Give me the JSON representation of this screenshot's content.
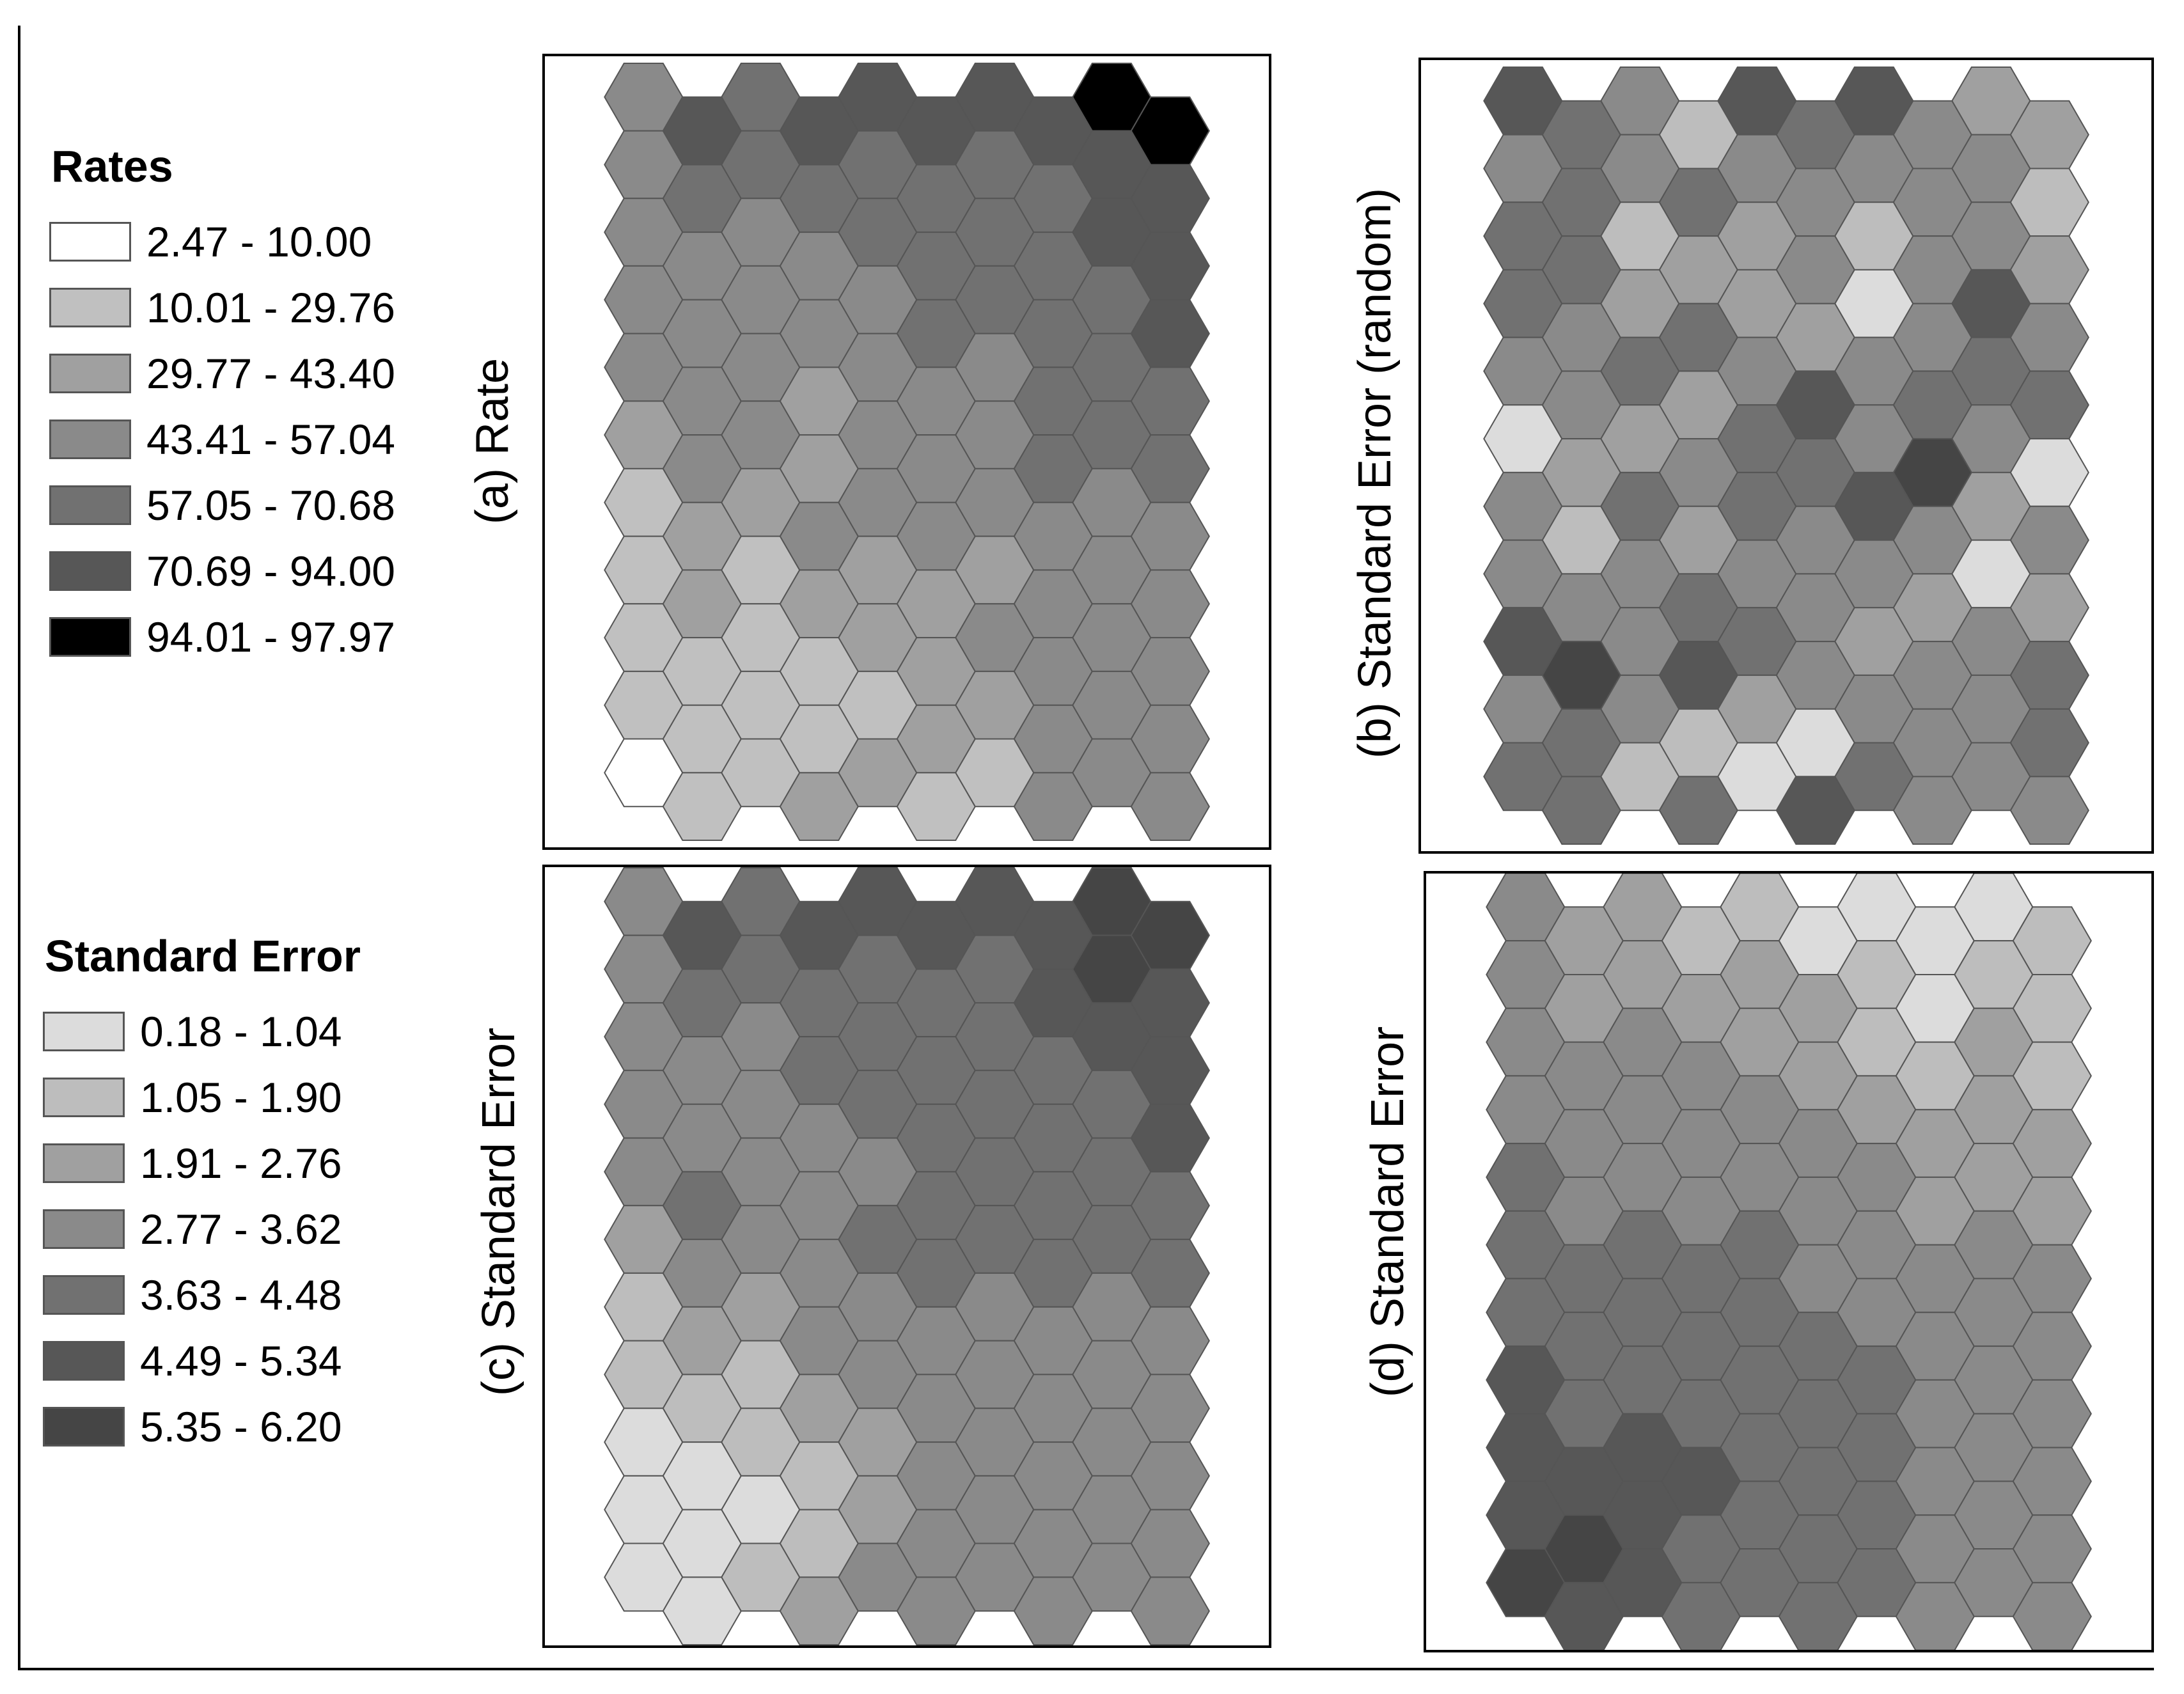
{
  "colors": {
    "classes": [
      "#ffffff",
      "#c0c0c0",
      "#a0a0a0",
      "#8a8a8a",
      "#717171",
      "#575757",
      "#000000"
    ],
    "se_classes": [
      "#dcdcdc",
      "#bdbdbd",
      "#a0a0a0",
      "#8a8a8a",
      "#717171",
      "#575757",
      "#454545"
    ],
    "hex_stroke": "#555555"
  },
  "legends": {
    "rates": {
      "title": "Rates",
      "items": [
        "2.47 - 10.00",
        "10.01 - 29.76",
        "29.77 - 43.40",
        "43.41 - 57.04",
        "57.05 - 70.68",
        "70.69 - 94.00",
        "94.01 - 97.97"
      ]
    },
    "standard_error": {
      "title": "Standard Error",
      "items": [
        "0.18 - 1.04",
        "1.05 - 1.90",
        "1.91 - 2.76",
        "2.77 - 3.62",
        "3.63 - 4.48",
        "4.49 - 5.34",
        "5.35 - 6.20"
      ]
    }
  },
  "chart_data": [
    {
      "type": "heatmap",
      "layout": "hexagonal grid, 10 columns x 11 rows, flat-topped hexagons, odd columns offset downward",
      "title": "(a) Rate",
      "legend": "Rates",
      "classes": [
        [
          3,
          3,
          3,
          3,
          3,
          2,
          1,
          1,
          1,
          1,
          0
        ],
        [
          5,
          4,
          3,
          3,
          3,
          3,
          2,
          2,
          1,
          1,
          1
        ],
        [
          4,
          4,
          3,
          3,
          3,
          3,
          2,
          1,
          1,
          1,
          1
        ],
        [
          5,
          4,
          3,
          3,
          2,
          2,
          3,
          2,
          1,
          1,
          2
        ],
        [
          5,
          4,
          4,
          3,
          3,
          3,
          3,
          2,
          2,
          1,
          2
        ],
        [
          5,
          4,
          4,
          4,
          3,
          3,
          3,
          2,
          2,
          2,
          1
        ],
        [
          5,
          4,
          4,
          4,
          3,
          3,
          3,
          2,
          3,
          2,
          1
        ],
        [
          5,
          4,
          4,
          4,
          4,
          4,
          3,
          3,
          3,
          3,
          3
        ],
        [
          6,
          5,
          5,
          4,
          4,
          4,
          3,
          3,
          3,
          3,
          3
        ],
        [
          6,
          5,
          5,
          5,
          4,
          4,
          3,
          3,
          3,
          3,
          3
        ]
      ]
    },
    {
      "type": "heatmap",
      "layout": "hexagonal grid, 10 columns x 11 rows, flat-topped hexagons, odd columns offset downward",
      "title": "(b) Standard Error (random)",
      "legend": "Standard Error",
      "classes": [
        [
          5,
          3,
          4,
          4,
          3,
          0,
          3,
          3,
          5,
          3,
          4
        ],
        [
          4,
          4,
          4,
          3,
          3,
          2,
          1,
          3,
          6,
          4,
          4
        ],
        [
          3,
          3,
          1,
          2,
          4,
          2,
          4,
          3,
          3,
          3,
          1
        ],
        [
          1,
          4,
          2,
          4,
          2,
          3,
          2,
          4,
          5,
          1,
          4
        ],
        [
          5,
          3,
          2,
          2,
          3,
          4,
          4,
          3,
          4,
          2,
          0
        ],
        [
          4,
          3,
          3,
          2,
          5,
          4,
          3,
          3,
          3,
          0,
          5
        ],
        [
          5,
          3,
          1,
          0,
          3,
          3,
          5,
          3,
          2,
          3,
          4
        ],
        [
          3,
          3,
          3,
          3,
          4,
          6,
          3,
          2,
          3,
          3,
          3
        ],
        [
          2,
          3,
          3,
          5,
          4,
          3,
          2,
          0,
          3,
          3,
          3
        ],
        [
          2,
          1,
          2,
          3,
          4,
          0,
          3,
          2,
          4,
          4,
          3
        ]
      ]
    },
    {
      "type": "heatmap",
      "layout": "hexagonal grid, 10 columns x 11 rows, flat-topped hexagons, odd columns offset downward",
      "title": "(c) Standard Error",
      "legend": "Standard Error",
      "classes": [
        [
          3,
          3,
          3,
          3,
          3,
          2,
          1,
          1,
          0,
          0,
          0
        ],
        [
          5,
          4,
          3,
          3,
          4,
          3,
          2,
          1,
          0,
          0,
          0
        ],
        [
          4,
          4,
          3,
          3,
          3,
          3,
          2,
          1,
          1,
          0,
          1
        ],
        [
          5,
          4,
          4,
          3,
          3,
          3,
          3,
          2,
          1,
          1,
          2
        ],
        [
          5,
          4,
          4,
          4,
          3,
          4,
          3,
          3,
          2,
          2,
          3
        ],
        [
          5,
          4,
          4,
          4,
          4,
          4,
          3,
          3,
          3,
          3,
          3
        ],
        [
          5,
          4,
          4,
          4,
          4,
          4,
          3,
          3,
          3,
          3,
          3
        ],
        [
          5,
          5,
          4,
          4,
          4,
          4,
          3,
          3,
          3,
          3,
          3
        ],
        [
          6,
          6,
          5,
          4,
          4,
          4,
          3,
          3,
          3,
          3,
          3
        ],
        [
          6,
          5,
          5,
          5,
          4,
          4,
          3,
          3,
          3,
          3,
          3
        ]
      ]
    },
    {
      "type": "heatmap",
      "layout": "hexagonal grid, 10 columns x 11 rows, flat-topped hexagons, odd columns offset downward",
      "title": "(d) Standard Error",
      "legend": "Standard Error",
      "classes": [
        [
          3,
          3,
          3,
          3,
          4,
          4,
          4,
          5,
          5,
          5,
          6
        ],
        [
          2,
          2,
          3,
          3,
          3,
          4,
          4,
          4,
          5,
          6,
          5
        ],
        [
          2,
          2,
          3,
          3,
          3,
          4,
          4,
          4,
          5,
          5,
          5
        ],
        [
          1,
          2,
          3,
          3,
          3,
          4,
          4,
          4,
          5,
          4,
          4
        ],
        [
          1,
          2,
          2,
          3,
          3,
          4,
          4,
          4,
          4,
          4,
          4
        ],
        [
          0,
          2,
          2,
          3,
          3,
          3,
          4,
          4,
          4,
          4,
          4
        ],
        [
          0,
          1,
          1,
          2,
          3,
          3,
          3,
          4,
          4,
          4,
          4
        ],
        [
          0,
          0,
          1,
          2,
          2,
          3,
          3,
          3,
          3,
          3,
          3
        ],
        [
          0,
          1,
          2,
          2,
          2,
          3,
          3,
          3,
          3,
          3,
          3
        ],
        [
          1,
          1,
          1,
          2,
          2,
          3,
          3,
          3,
          3,
          3,
          3
        ]
      ]
    }
  ]
}
